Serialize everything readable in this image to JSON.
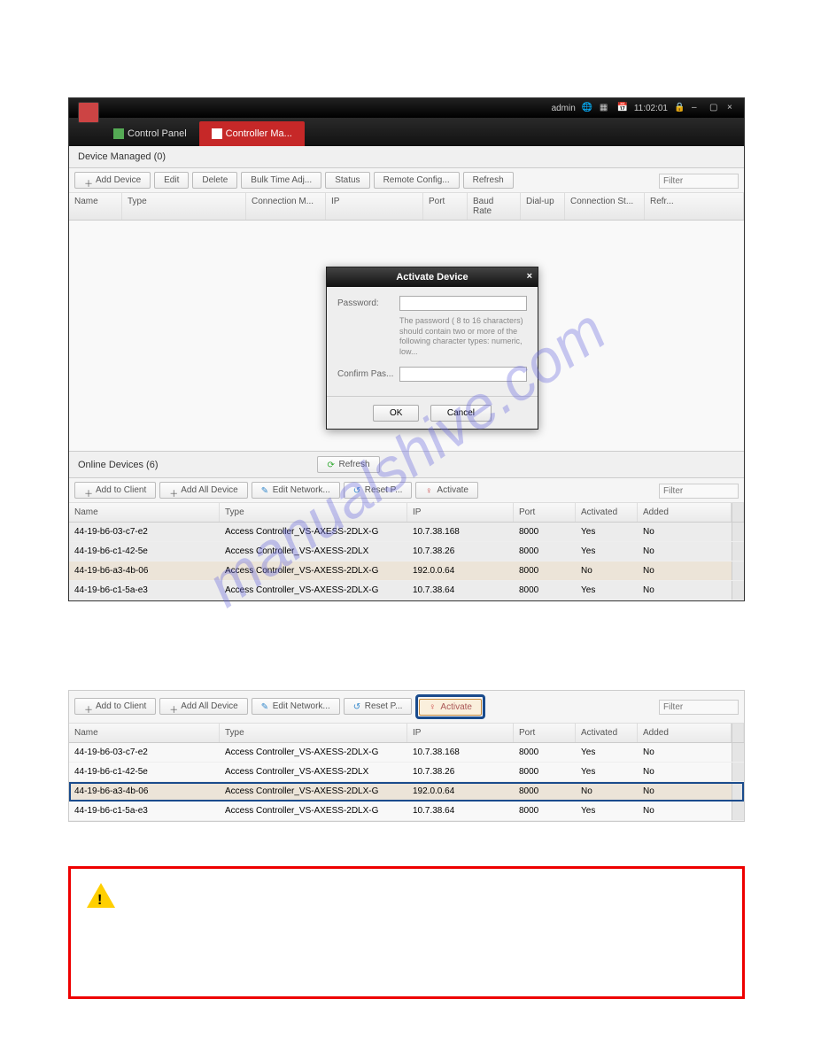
{
  "titlebar": {
    "user": "admin",
    "time": "11:02:01"
  },
  "tabs": {
    "control_panel": "Control Panel",
    "controller": "Controller Ma..."
  },
  "managed": {
    "title": "Device Managed (0)",
    "btns": {
      "add": "Add Device",
      "edit": "Edit",
      "delete": "Delete",
      "bulk": "Bulk Time Adj...",
      "status": "Status",
      "remote": "Remote Config...",
      "refresh": "Refresh"
    },
    "filter_placeholder": "Filter",
    "cols": {
      "name": "Name",
      "type": "Type",
      "conn": "Connection M...",
      "ip": "IP",
      "port": "Port",
      "baud": "Baud Rate",
      "dialup": "Dial-up",
      "connst": "Connection St...",
      "refr": "Refr..."
    }
  },
  "modal": {
    "title": "Activate Device",
    "password_label": "Password:",
    "hint": "The password ( 8 to 16 characters) should contain two or more of the following character types: numeric, low...",
    "confirm_label": "Confirm Pas...",
    "ok": "OK",
    "cancel": "Cancel"
  },
  "online": {
    "title": "Online Devices (6)",
    "refresh": "Refresh",
    "btns": {
      "add_client": "Add to Client",
      "add_all": "Add All Device",
      "edit_net": "Edit Network...",
      "reset": "Reset P...",
      "activate": "Activate"
    },
    "filter_placeholder": "Filter",
    "cols": {
      "name": "Name",
      "type": "Type",
      "ip": "IP",
      "port": "Port",
      "activated": "Activated",
      "added": "Added"
    },
    "rows": [
      {
        "name": "44-19-b6-03-c7-e2",
        "type": "Access Controller_VS-AXESS-2DLX-G",
        "ip": "10.7.38.168",
        "port": "8000",
        "activated": "Yes",
        "added": "No",
        "sel": false
      },
      {
        "name": "44-19-b6-c1-42-5e",
        "type": "Access Controller_VS-AXESS-2DLX",
        "ip": "10.7.38.26",
        "port": "8000",
        "activated": "Yes",
        "added": "No",
        "sel": false
      },
      {
        "name": "44-19-b6-a3-4b-06",
        "type": "Access Controller_VS-AXESS-2DLX-G",
        "ip": "192.0.0.64",
        "port": "8000",
        "activated": "No",
        "added": "No",
        "sel": true
      },
      {
        "name": "44-19-b6-c1-5a-e3",
        "type": "Access Controller_VS-AXESS-2DLX-G",
        "ip": "10.7.38.64",
        "port": "8000",
        "activated": "Yes",
        "added": "No",
        "sel": false
      }
    ]
  },
  "watermark": "manualshive.com",
  "colors": {
    "accent_red": "#c62828",
    "highlight_blue": "#1a4b8c",
    "warn_border": "#e00000",
    "warn_triangle": "#ffcf00"
  }
}
